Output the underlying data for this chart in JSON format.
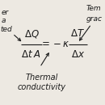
{
  "bg_color": "#ede9e2",
  "text_color": "#1a1a1a",
  "label_left_line1": "er",
  "label_left_line2": "a",
  "label_left_line3": "ted",
  "label_right_line1": "Tem",
  "label_right_line2": "grac",
  "label_thermal_line1": "Thermal",
  "label_thermal_line2": "conductivity",
  "formula_dQ": "$\\Delta Q$",
  "formula_dtA": "$\\Delta t\\;A$",
  "formula_equals": "$= -\\kappa$",
  "formula_dT": "$\\Delta T$",
  "formula_dx": "$\\Delta x$"
}
